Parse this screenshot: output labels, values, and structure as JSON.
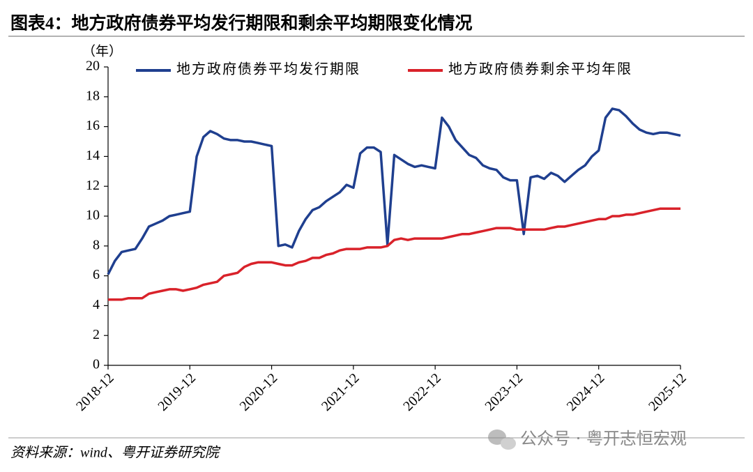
{
  "chart_data": {
    "type": "line",
    "title": "图表4：地方政府债券平均发行期限和剩余平均期限变化情况",
    "y_label": "（年）",
    "source": "资料来源：wind、粤开证券研究院",
    "watermark": "公众号 · 粤开志恒宏观",
    "legend": "top",
    "categories": [
      "2018-12",
      null,
      null,
      null,
      null,
      null,
      null,
      null,
      null,
      null,
      null,
      null,
      "2019-12",
      null,
      null,
      null,
      null,
      null,
      null,
      null,
      null,
      null,
      null,
      null,
      "2020-12",
      null,
      null,
      null,
      null,
      null,
      null,
      null,
      null,
      null,
      null,
      null,
      "2021-12",
      null,
      null,
      null,
      null,
      null,
      null,
      null,
      null,
      null,
      null,
      null,
      "2022-12",
      null,
      null,
      null,
      null,
      null,
      null,
      null,
      null,
      null,
      null,
      null,
      "2023-12",
      null,
      null,
      null,
      null,
      null,
      null,
      null,
      null,
      null,
      null,
      null,
      "2024-12",
      null,
      null,
      null,
      null,
      null,
      null,
      null,
      null,
      null,
      null,
      null,
      "2025-12"
    ],
    "ylim": [
      0,
      20
    ],
    "yticks": [
      0,
      2,
      4,
      6,
      8,
      10,
      12,
      14,
      16,
      18,
      20
    ],
    "series": [
      {
        "name": "地方政府债券平均发行期限",
        "color": "#1f3f8f",
        "values": [
          6.1,
          7.0,
          7.6,
          7.7,
          7.8,
          8.5,
          9.3,
          9.5,
          9.7,
          10.0,
          10.1,
          10.2,
          10.3,
          14.0,
          15.3,
          15.7,
          15.5,
          15.2,
          15.1,
          15.1,
          15.0,
          15.0,
          14.9,
          14.8,
          14.7,
          8.0,
          8.1,
          7.9,
          9.0,
          9.8,
          10.4,
          10.6,
          11.0,
          11.3,
          11.6,
          12.1,
          11.9,
          14.2,
          14.6,
          14.6,
          14.3,
          8.1,
          14.1,
          13.8,
          13.5,
          13.3,
          13.4,
          13.3,
          13.2,
          16.6,
          16.0,
          15.1,
          14.6,
          14.1,
          13.9,
          13.4,
          13.2,
          13.1,
          12.6,
          12.4,
          12.4,
          8.8,
          12.6,
          12.7,
          12.5,
          12.9,
          12.7,
          12.3,
          12.7,
          13.1,
          13.4,
          14.0,
          14.4,
          16.6,
          17.2,
          17.1,
          16.7,
          16.2,
          15.8,
          15.6,
          15.5,
          15.6,
          15.6,
          15.5,
          15.4
        ]
      },
      {
        "name": "地方政府债券剩余平均年限",
        "color": "#d9222a",
        "values": [
          4.4,
          4.4,
          4.4,
          4.5,
          4.5,
          4.5,
          4.8,
          4.9,
          5.0,
          5.1,
          5.1,
          5.0,
          5.1,
          5.2,
          5.4,
          5.5,
          5.6,
          6.0,
          6.1,
          6.2,
          6.6,
          6.8,
          6.9,
          6.9,
          6.9,
          6.8,
          6.7,
          6.7,
          6.9,
          7.0,
          7.2,
          7.2,
          7.4,
          7.5,
          7.7,
          7.8,
          7.8,
          7.8,
          7.9,
          7.9,
          7.9,
          8.0,
          8.4,
          8.5,
          8.4,
          8.5,
          8.5,
          8.5,
          8.5,
          8.5,
          8.6,
          8.7,
          8.8,
          8.8,
          8.9,
          9.0,
          9.1,
          9.2,
          9.2,
          9.2,
          9.1,
          9.1,
          9.1,
          9.1,
          9.1,
          9.2,
          9.3,
          9.3,
          9.4,
          9.5,
          9.6,
          9.7,
          9.8,
          9.8,
          10.0,
          10.0,
          10.1,
          10.1,
          10.2,
          10.3,
          10.4,
          10.5,
          10.5,
          10.5,
          10.5
        ]
      }
    ]
  }
}
